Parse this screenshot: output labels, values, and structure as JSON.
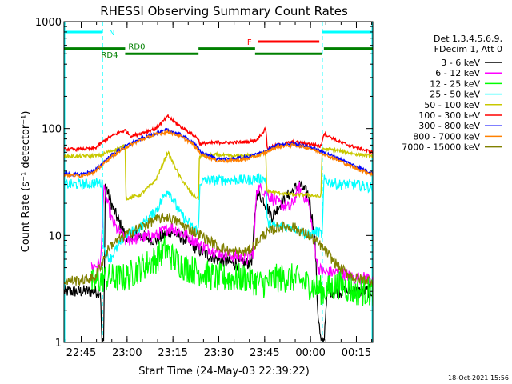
{
  "chart_data": {
    "type": "line",
    "title": "RHESSI Observing Summary Count Rates",
    "xlabel": "Start Time (24-May-03 22:39:22)",
    "ylabel": "Count Rate (s⁻¹ detector⁻¹)",
    "x_range_minutes": [
      0,
      101
    ],
    "y_scale": "log",
    "ylim": [
      1,
      1000
    ],
    "y_ticks": [
      {
        "value": 1,
        "label": "1"
      },
      {
        "value": 10,
        "label": "10"
      },
      {
        "value": 100,
        "label": "100"
      },
      {
        "value": 1000,
        "label": "1000"
      }
    ],
    "x_ticks": [
      {
        "t": 5.63,
        "label": "22:45"
      },
      {
        "t": 20.63,
        "label": "23:00"
      },
      {
        "t": 35.63,
        "label": "23:15"
      },
      {
        "t": 50.63,
        "label": "23:30"
      },
      {
        "t": 65.63,
        "label": "23:45"
      },
      {
        "t": 80.63,
        "label": "00:00"
      },
      {
        "t": 95.63,
        "label": "00:15"
      }
    ],
    "legend_header": [
      "Det 1,3,4,5,6,9,",
      "FDecim 1, Att 0"
    ],
    "legend_placement": "right",
    "timestamp": "18-Oct-2021 15:56",
    "night_intervals": [
      [
        0,
        12.6
      ],
      [
        84.5,
        101
      ]
    ],
    "flags": [
      {
        "label": "N",
        "color": "#00ffff",
        "segments": [
          [
            0,
            12.6
          ],
          [
            84.5,
            101
          ]
        ],
        "value": 800
      },
      {
        "label": "F",
        "color": "#ff0000",
        "segments": [
          [
            63.5,
            83.5
          ]
        ],
        "value": 650
      },
      {
        "label": "RD0",
        "color": "#008000",
        "segments": [
          [
            0,
            20
          ],
          [
            44,
            62.5
          ],
          [
            85,
            101
          ]
        ],
        "value": 560
      },
      {
        "label": "RD4",
        "color": "#008000",
        "segments": [
          [
            20,
            44
          ],
          [
            62.5,
            84.5
          ]
        ],
        "value": 500
      }
    ],
    "series": [
      {
        "name": "3 - 6 keV",
        "color": "#000000",
        "points": [
          [
            0,
            3
          ],
          [
            9,
            3
          ],
          [
            12,
            3
          ],
          [
            12.3,
            1
          ],
          [
            13,
            1
          ],
          [
            13.5,
            30
          ],
          [
            16,
            18
          ],
          [
            20,
            10
          ],
          [
            25,
            10
          ],
          [
            30,
            9
          ],
          [
            35,
            11
          ],
          [
            40,
            9
          ],
          [
            45,
            7
          ],
          [
            50,
            6
          ],
          [
            55,
            5.5
          ],
          [
            60,
            5.5
          ],
          [
            61.5,
            6
          ],
          [
            63,
            25
          ],
          [
            65,
            22
          ],
          [
            68,
            15
          ],
          [
            71,
            20
          ],
          [
            74,
            25
          ],
          [
            77,
            30
          ],
          [
            80,
            24
          ],
          [
            82,
            10
          ],
          [
            83,
            2
          ],
          [
            84,
            1
          ],
          [
            85,
            1
          ],
          [
            86,
            3
          ],
          [
            90,
            3
          ],
          [
            95,
            3
          ],
          [
            101,
            3
          ]
        ]
      },
      {
        "name": "6 - 12 keV",
        "color": "#ff00ff",
        "points": [
          [
            9,
            5
          ],
          [
            12,
            5.5
          ],
          [
            13,
            27
          ],
          [
            16,
            13
          ],
          [
            20,
            9
          ],
          [
            25,
            9.5
          ],
          [
            30,
            10
          ],
          [
            35,
            12
          ],
          [
            40,
            10
          ],
          [
            45,
            8
          ],
          [
            50,
            7
          ],
          [
            55,
            6.5
          ],
          [
            60,
            6
          ],
          [
            62,
            7
          ],
          [
            63,
            28
          ],
          [
            65,
            27
          ],
          [
            70,
            20
          ],
          [
            74,
            18
          ],
          [
            77,
            28
          ],
          [
            80,
            20
          ],
          [
            82,
            8
          ],
          [
            83,
            5
          ],
          [
            85,
            4.5
          ],
          [
            90,
            4.5
          ],
          [
            95,
            4
          ],
          [
            101,
            4
          ]
        ]
      },
      {
        "name": "12 - 25 keV",
        "color": "#00ff00",
        "points": [
          [
            9,
            3.5
          ],
          [
            13,
            4
          ],
          [
            20,
            4
          ],
          [
            25,
            5
          ],
          [
            30,
            6
          ],
          [
            33,
            7.5
          ],
          [
            36,
            6
          ],
          [
            40,
            5
          ],
          [
            45,
            4.5
          ],
          [
            50,
            4
          ],
          [
            55,
            4
          ],
          [
            60,
            4
          ],
          [
            65,
            3.5
          ],
          [
            70,
            4
          ],
          [
            75,
            4
          ],
          [
            80,
            3.5
          ],
          [
            85,
            3
          ],
          [
            90,
            3.5
          ],
          [
            95,
            3
          ],
          [
            101,
            3
          ]
        ]
      },
      {
        "name": "25 - 50 keV",
        "color": "#00ffff",
        "points": [
          [
            0,
            30
          ],
          [
            5,
            30
          ],
          [
            12,
            31
          ],
          [
            12.6,
            30
          ],
          [
            13,
            7.5
          ],
          [
            15,
            6
          ],
          [
            20,
            10
          ],
          [
            25,
            12
          ],
          [
            30,
            17
          ],
          [
            34,
            27
          ],
          [
            38,
            16
          ],
          [
            42,
            12
          ],
          [
            44,
            11
          ],
          [
            44.5,
            32
          ],
          [
            50,
            33
          ],
          [
            55,
            33
          ],
          [
            60,
            33
          ],
          [
            63,
            34
          ],
          [
            66,
            34
          ],
          [
            66.5,
            13
          ],
          [
            70,
            12
          ],
          [
            75,
            12
          ],
          [
            80,
            10
          ],
          [
            83,
            11
          ],
          [
            84.5,
            10
          ],
          [
            85,
            33
          ],
          [
            90,
            30
          ],
          [
            95,
            30
          ],
          [
            101,
            28
          ]
        ]
      },
      {
        "name": "50 - 100 keV",
        "color": "#c8c800",
        "points": [
          [
            0,
            55
          ],
          [
            5,
            55
          ],
          [
            12,
            56
          ],
          [
            14,
            60
          ],
          [
            18,
            65
          ],
          [
            20,
            70
          ],
          [
            20.3,
            22
          ],
          [
            25,
            24
          ],
          [
            30,
            33
          ],
          [
            34,
            60
          ],
          [
            38,
            35
          ],
          [
            42,
            24
          ],
          [
            44,
            22
          ],
          [
            44.3,
            55
          ],
          [
            50,
            57
          ],
          [
            55,
            55
          ],
          [
            60,
            56
          ],
          [
            63,
            56
          ],
          [
            66,
            60
          ],
          [
            66.3,
            26
          ],
          [
            70,
            25
          ],
          [
            75,
            24
          ],
          [
            80,
            24
          ],
          [
            84,
            23
          ],
          [
            84.5,
            65
          ],
          [
            90,
            62
          ],
          [
            95,
            58
          ],
          [
            101,
            55
          ]
        ]
      },
      {
        "name": "100 - 300 keV",
        "color": "#ff0000",
        "points": [
          [
            0,
            64
          ],
          [
            5,
            64
          ],
          [
            10,
            65
          ],
          [
            14,
            80
          ],
          [
            18,
            92
          ],
          [
            20,
            96
          ],
          [
            22,
            85
          ],
          [
            25,
            90
          ],
          [
            30,
            100
          ],
          [
            34,
            130
          ],
          [
            38,
            105
          ],
          [
            42,
            88
          ],
          [
            44,
            80
          ],
          [
            44.3,
            72
          ],
          [
            50,
            74
          ],
          [
            55,
            74
          ],
          [
            60,
            75
          ],
          [
            63,
            78
          ],
          [
            66,
            100
          ],
          [
            66.5,
            65
          ],
          [
            70,
            70
          ],
          [
            75,
            75
          ],
          [
            80,
            72
          ],
          [
            84,
            68
          ],
          [
            85,
            90
          ],
          [
            90,
            75
          ],
          [
            95,
            67
          ],
          [
            101,
            60
          ]
        ]
      },
      {
        "name": "300 - 800 keV",
        "color": "#0000ff",
        "points": [
          [
            0,
            38
          ],
          [
            5,
            37
          ],
          [
            10,
            40
          ],
          [
            15,
            55
          ],
          [
            20,
            68
          ],
          [
            25,
            80
          ],
          [
            30,
            90
          ],
          [
            34,
            97
          ],
          [
            38,
            88
          ],
          [
            42,
            75
          ],
          [
            45,
            60
          ],
          [
            50,
            52
          ],
          [
            55,
            52
          ],
          [
            60,
            54
          ],
          [
            65,
            60
          ],
          [
            70,
            70
          ],
          [
            75,
            72
          ],
          [
            80,
            68
          ],
          [
            85,
            60
          ],
          [
            90,
            52
          ],
          [
            95,
            45
          ],
          [
            101,
            38
          ]
        ]
      },
      {
        "name": "800 - 7000 keV",
        "color": "#ff8000",
        "points": [
          [
            0,
            37
          ],
          [
            5,
            36
          ],
          [
            10,
            39
          ],
          [
            15,
            53
          ],
          [
            20,
            66
          ],
          [
            25,
            78
          ],
          [
            30,
            88
          ],
          [
            34,
            93
          ],
          [
            38,
            85
          ],
          [
            42,
            72
          ],
          [
            45,
            57
          ],
          [
            50,
            50
          ],
          [
            55,
            50
          ],
          [
            60,
            52
          ],
          [
            65,
            58
          ],
          [
            70,
            68
          ],
          [
            75,
            70
          ],
          [
            80,
            66
          ],
          [
            85,
            58
          ],
          [
            90,
            50
          ],
          [
            95,
            43
          ],
          [
            101,
            37
          ]
        ]
      },
      {
        "name": "7000 - 15000 keV",
        "color": "#808000",
        "points": [
          [
            0,
            3.8
          ],
          [
            5,
            3.8
          ],
          [
            10,
            4
          ],
          [
            15,
            8
          ],
          [
            20,
            10
          ],
          [
            25,
            12
          ],
          [
            30,
            14
          ],
          [
            34,
            15
          ],
          [
            38,
            13
          ],
          [
            42,
            11
          ],
          [
            45,
            10
          ],
          [
            50,
            8
          ],
          [
            55,
            7
          ],
          [
            60,
            7
          ],
          [
            62,
            8
          ],
          [
            65,
            10
          ],
          [
            70,
            12
          ],
          [
            75,
            12
          ],
          [
            80,
            10
          ],
          [
            84,
            8
          ],
          [
            90,
            5
          ],
          [
            95,
            4
          ],
          [
            101,
            3.8
          ]
        ]
      }
    ]
  }
}
